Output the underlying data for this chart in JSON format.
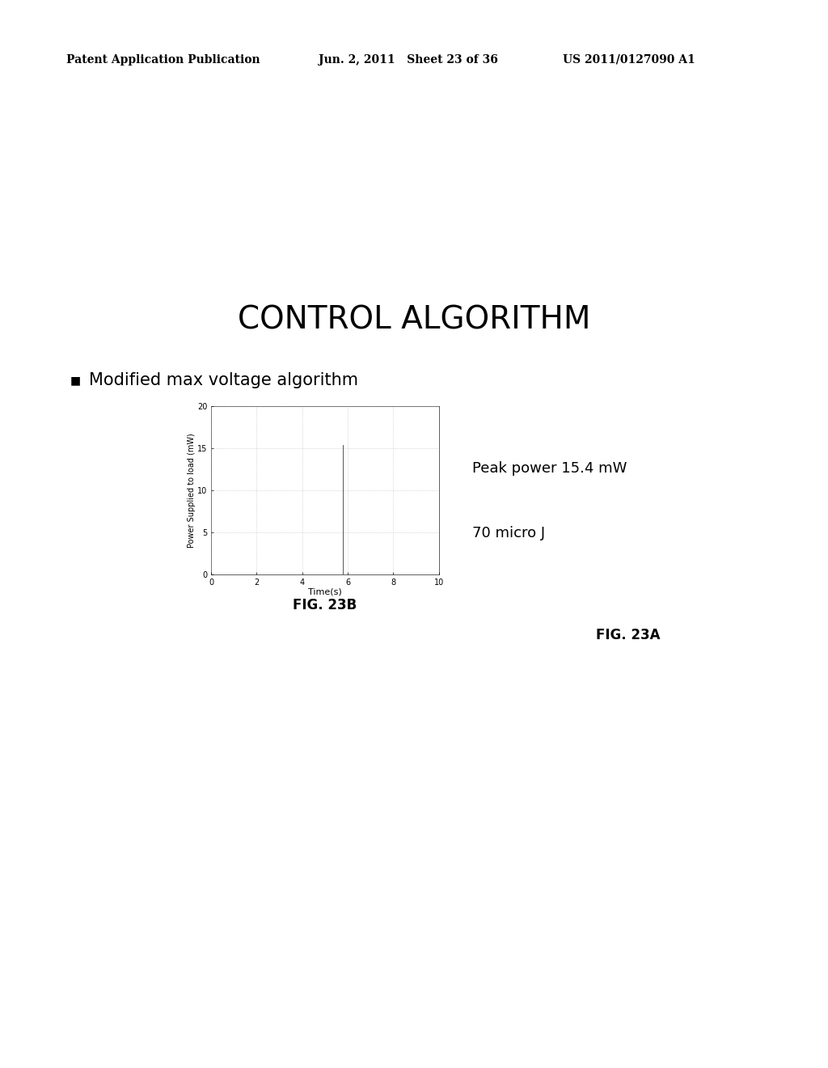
{
  "header_left": "Patent Application Publication",
  "header_mid": "Jun. 2, 2011   Sheet 23 of 36",
  "header_right": "US 2011/0127090 A1",
  "title": "CONTROL ALGORITHM",
  "bullet_text": "Modified max voltage algorithm",
  "fig23b_label": "FIG. 23B",
  "fig23a_label": "FIG. 23A",
  "peak_power_text": "Peak power 15.4 mW",
  "energy_text": "70 micro J",
  "plot_xlabel": "Time(s)",
  "plot_ylabel": "Power Supplied to load (mW)",
  "xlim": [
    0,
    10
  ],
  "ylim": [
    0,
    20
  ],
  "xticks": [
    0,
    2,
    4,
    6,
    8,
    10
  ],
  "yticks": [
    0,
    5,
    10,
    15,
    20
  ],
  "spike_x": 5.8,
  "spike_height": 15.4,
  "background_color": "#ffffff",
  "text_color": "#000000",
  "plot_line_color": "#555555",
  "grid_color": "#bbbbbb",
  "header_fontsize": 10,
  "title_fontsize": 28,
  "bullet_fontsize": 15,
  "fig_label_fontsize": 12,
  "annotation_fontsize": 13
}
